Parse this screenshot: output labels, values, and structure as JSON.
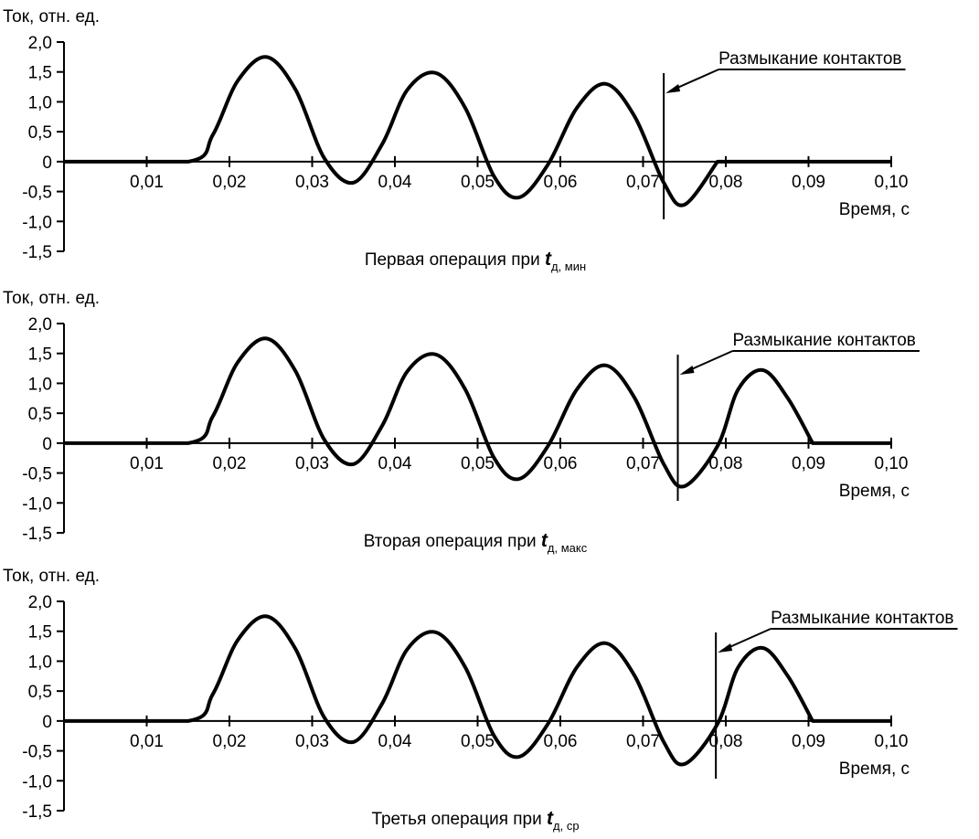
{
  "chart_data": [
    {
      "type": "line",
      "ylabel": "Ток, отн. ед.",
      "xlabel": "Время, с",
      "yticks": [
        "2,0",
        "1,5",
        "1,0",
        "0,5",
        "0",
        "-0,5",
        "-1,0",
        "-1,5"
      ],
      "ytick_values": [
        2.0,
        1.5,
        1.0,
        0.5,
        0,
        -0.5,
        -1.0,
        -1.5
      ],
      "xticks": [
        "0,01",
        "0,02",
        "0,03",
        "0,04",
        "0,05",
        "0,06",
        "0,07",
        "0,08",
        "0,09",
        "0,10"
      ],
      "xtick_values": [
        0.01,
        0.02,
        0.03,
        0.04,
        0.05,
        0.06,
        0.07,
        0.08,
        0.09,
        0.1
      ],
      "xlim": [
        0,
        0.1
      ],
      "ylim": [
        -1.5,
        2.0
      ],
      "caption": {
        "text": "Первая операция при ",
        "symbol": "t",
        "subscript": "д, мин"
      },
      "annotation": {
        "text": "Размыкание контактов",
        "x": 0.0725
      },
      "series": [
        {
          "x": [
            0,
            0.015,
            0.018,
            0.021,
            0.0245,
            0.028,
            0.0315,
            0.035,
            0.0385,
            0.0415,
            0.045,
            0.0485,
            0.052,
            0.055,
            0.0585,
            0.062,
            0.0655,
            0.069,
            0.0725,
            0.075,
            0.079,
            0.079,
            0.1
          ],
          "y": [
            0,
            0,
            0.45,
            1.35,
            1.75,
            1.2,
            0.05,
            -0.35,
            0.3,
            1.2,
            1.48,
            0.9,
            -0.25,
            -0.6,
            -0.05,
            0.9,
            1.3,
            0.75,
            -0.35,
            -0.72,
            0,
            0,
            0
          ]
        }
      ]
    },
    {
      "type": "line",
      "ylabel": "Ток, отн. ед.",
      "xlabel": "Время, с",
      "yticks": [
        "2,0",
        "1,5",
        "1,0",
        "0,5",
        "0",
        "-0,5",
        "-1,0",
        "-1,5"
      ],
      "ytick_values": [
        2.0,
        1.5,
        1.0,
        0.5,
        0,
        -0.5,
        -1.0,
        -1.5
      ],
      "xticks": [
        "0,01",
        "0,02",
        "0,03",
        "0,04",
        "0,05",
        "0,06",
        "0,07",
        "0,08",
        "0,09",
        "0,10"
      ],
      "xtick_values": [
        0.01,
        0.02,
        0.03,
        0.04,
        0.05,
        0.06,
        0.07,
        0.08,
        0.09,
        0.1
      ],
      "xlim": [
        0,
        0.1
      ],
      "ylim": [
        -1.5,
        2.0
      ],
      "caption": {
        "text": "Вторая операция при ",
        "symbol": "t",
        "subscript": "д, макс"
      },
      "annotation": {
        "text": "Размыкание контактов",
        "x": 0.0742
      },
      "series": [
        {
          "x": [
            0,
            0.015,
            0.018,
            0.021,
            0.0245,
            0.028,
            0.0315,
            0.035,
            0.0385,
            0.0415,
            0.045,
            0.0485,
            0.052,
            0.055,
            0.0585,
            0.062,
            0.0655,
            0.069,
            0.0725,
            0.075,
            0.079,
            0.0815,
            0.0845,
            0.0875,
            0.0905,
            0.0905,
            0.1
          ],
          "y": [
            0,
            0,
            0.45,
            1.35,
            1.75,
            1.2,
            0.05,
            -0.35,
            0.3,
            1.2,
            1.48,
            0.9,
            -0.25,
            -0.6,
            -0.05,
            0.9,
            1.3,
            0.75,
            -0.35,
            -0.72,
            -0.05,
            0.9,
            1.22,
            0.75,
            0,
            0,
            0
          ]
        }
      ]
    },
    {
      "type": "line",
      "ylabel": "Ток, отн. ед.",
      "xlabel": "Время, с",
      "yticks": [
        "2,0",
        "1,5",
        "1,0",
        "0,5",
        "0",
        "-0,5",
        "-1,0",
        "-1,5"
      ],
      "ytick_values": [
        2.0,
        1.5,
        1.0,
        0.5,
        0,
        -0.5,
        -1.0,
        -1.5
      ],
      "xticks": [
        "0,01",
        "0,02",
        "0,03",
        "0,04",
        "0,05",
        "0,06",
        "0,07",
        "0,08",
        "0,09",
        "0,10"
      ],
      "xtick_values": [
        0.01,
        0.02,
        0.03,
        0.04,
        0.05,
        0.06,
        0.07,
        0.08,
        0.09,
        0.1
      ],
      "xlim": [
        0,
        0.1
      ],
      "ylim": [
        -1.5,
        2.0
      ],
      "caption": {
        "text": "Третья операция при ",
        "symbol": "t",
        "subscript": "д, ср"
      },
      "annotation": {
        "text": "Размыкание контактов",
        "x": 0.0788
      },
      "series": [
        {
          "x": [
            0,
            0.015,
            0.018,
            0.021,
            0.0245,
            0.028,
            0.0315,
            0.035,
            0.0385,
            0.0415,
            0.045,
            0.0485,
            0.052,
            0.055,
            0.0585,
            0.062,
            0.0655,
            0.069,
            0.0725,
            0.075,
            0.079,
            0.0815,
            0.0845,
            0.0875,
            0.0905,
            0.0905,
            0.1
          ],
          "y": [
            0,
            0,
            0.45,
            1.35,
            1.75,
            1.2,
            0.05,
            -0.35,
            0.3,
            1.2,
            1.48,
            0.9,
            -0.25,
            -0.6,
            -0.05,
            0.9,
            1.3,
            0.75,
            -0.35,
            -0.72,
            -0.05,
            0.9,
            1.22,
            0.75,
            0,
            0,
            0
          ]
        }
      ]
    }
  ]
}
